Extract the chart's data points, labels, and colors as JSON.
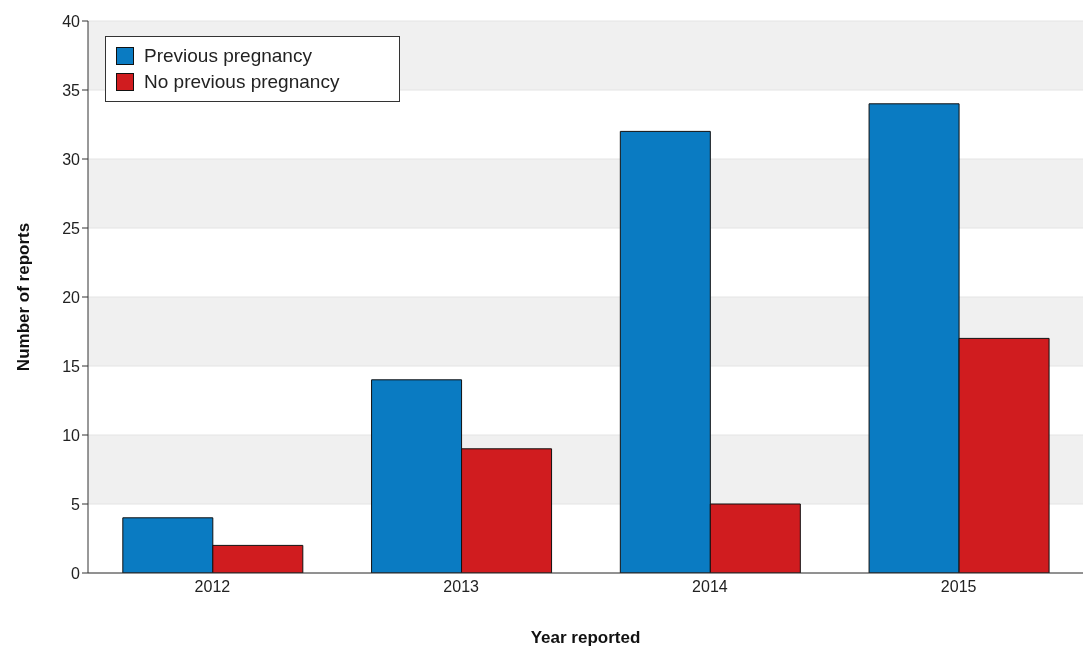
{
  "chart_data": {
    "type": "bar",
    "xlabel": "Year reported",
    "ylabel": "Number of reports",
    "categories": [
      "2012",
      "2013",
      "2014",
      "2015"
    ],
    "series": [
      {
        "name": "Previous pregnancy",
        "color": "#0a7bc2",
        "values": [
          4,
          14,
          32,
          34
        ]
      },
      {
        "name": "No previous pregnancy",
        "color": "#d01c1f",
        "values": [
          2,
          9,
          5,
          17
        ]
      }
    ],
    "ylim": [
      0,
      40
    ],
    "yticks": [
      0,
      5,
      10,
      15,
      20,
      25,
      30,
      35,
      40
    ],
    "grid": "y",
    "legend": "top left"
  }
}
